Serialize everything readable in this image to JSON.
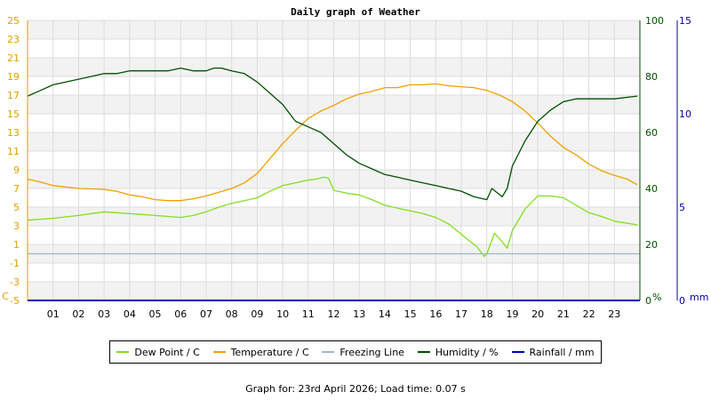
{
  "chart_data": {
    "type": "line",
    "title": "Daily graph of Weather",
    "x_ticks": [
      "01",
      "02",
      "03",
      "04",
      "05",
      "06",
      "07",
      "08",
      "09",
      "10",
      "11",
      "12",
      "13",
      "14",
      "15",
      "16",
      "17",
      "18",
      "19",
      "20",
      "21",
      "22",
      "23"
    ],
    "xlim": [
      0,
      24
    ],
    "y_left": {
      "unit_label": "C",
      "ticks": [
        -5,
        -3,
        -1,
        1,
        3,
        5,
        7,
        9,
        11,
        13,
        15,
        17,
        19,
        21,
        23,
        25
      ],
      "lim": [
        -5,
        25
      ],
      "color": "#e0a000"
    },
    "y_right_humidity": {
      "unit_label": "%",
      "ticks": [
        0,
        20,
        40,
        60,
        80,
        100
      ],
      "lim": [
        0,
        100
      ],
      "color": "#005000"
    },
    "y_right_rain": {
      "unit_label": "mm",
      "ticks": [
        0,
        5,
        10,
        15
      ],
      "lim": [
        0,
        15
      ],
      "color": "#0000a0"
    },
    "grid": true,
    "legend_position": "bottom",
    "series": [
      {
        "name": "Dew Point / C",
        "axis": "left",
        "color": "#80e020",
        "x": [
          0,
          1,
          2,
          2.5,
          3,
          3.5,
          4,
          5,
          6,
          6.5,
          7,
          7.5,
          8,
          8.5,
          9,
          9.5,
          10,
          10.5,
          11,
          11.3,
          11.6,
          11.8,
          12,
          12.5,
          13,
          13.5,
          14,
          14.5,
          15,
          15.5,
          16,
          16.5,
          17,
          17.3,
          17.6,
          17.9,
          18,
          18.3,
          18.6,
          18.8,
          19,
          19.5,
          20,
          20.5,
          21,
          21.5,
          22,
          22.5,
          23,
          23.9
        ],
        "y": [
          3.6,
          3.8,
          4.1,
          4.3,
          4.5,
          4.4,
          4.3,
          4.1,
          3.9,
          4.1,
          4.5,
          5.0,
          5.4,
          5.7,
          6.0,
          6.7,
          7.3,
          7.6,
          7.9,
          8.0,
          8.2,
          8.1,
          6.8,
          6.5,
          6.3,
          5.8,
          5.2,
          4.9,
          4.6,
          4.3,
          3.9,
          3.2,
          2.1,
          1.4,
          0.8,
          -0.3,
          0,
          2.2,
          1.3,
          0.6,
          2.5,
          4.8,
          6.2,
          6.2,
          6.0,
          5.2,
          4.4,
          4.0,
          3.5,
          3.1
        ]
      },
      {
        "name": "Temperature / C",
        "axis": "left",
        "color": "#f0a000",
        "x": [
          0,
          0.5,
          1,
          2,
          3,
          3.5,
          4,
          4.5,
          5,
          5.5,
          6,
          6.5,
          7,
          7.5,
          8,
          8.5,
          9,
          9.5,
          10,
          10.5,
          11,
          11.5,
          12,
          12.5,
          13,
          13.5,
          14,
          14.5,
          15,
          15.5,
          16,
          16.5,
          17,
          17.5,
          18,
          18.5,
          19,
          19.5,
          20,
          20.5,
          21,
          21.5,
          22,
          22.5,
          23,
          23.5,
          23.9
        ],
        "y": [
          8.0,
          7.7,
          7.3,
          7.0,
          6.9,
          6.7,
          6.3,
          6.1,
          5.8,
          5.7,
          5.7,
          5.9,
          6.2,
          6.6,
          7.0,
          7.6,
          8.6,
          10.2,
          11.8,
          13.2,
          14.5,
          15.3,
          15.9,
          16.6,
          17.1,
          17.4,
          17.8,
          17.8,
          18.1,
          18.1,
          18.2,
          18.0,
          17.9,
          17.8,
          17.5,
          17.0,
          16.3,
          15.3,
          14.0,
          12.6,
          11.4,
          10.6,
          9.6,
          8.9,
          8.4,
          8.0,
          7.4
        ]
      },
      {
        "name": "Freezing Line",
        "axis": "left",
        "color": "#a0b8c8",
        "x": [
          0,
          24
        ],
        "y": [
          0,
          0
        ]
      },
      {
        "name": "Humidity / %",
        "axis": "right_humidity",
        "color": "#005000",
        "x": [
          0,
          0.5,
          1,
          1.5,
          2,
          2.5,
          3,
          3.5,
          4,
          4.5,
          5,
          5.5,
          6,
          6.5,
          7,
          7.3,
          7.6,
          8,
          8.5,
          9,
          9.5,
          10,
          10.5,
          11,
          11.5,
          12,
          12.5,
          13,
          13.5,
          14,
          14.5,
          15,
          15.5,
          16,
          16.5,
          17,
          17.5,
          18,
          18.2,
          18.6,
          18.8,
          19,
          19.5,
          20,
          20.5,
          21,
          21.5,
          22,
          23,
          23.9
        ],
        "y": [
          73,
          75,
          77,
          78,
          79,
          80,
          81,
          81,
          82,
          82,
          82,
          82,
          83,
          82,
          82,
          83,
          83,
          82,
          81,
          78,
          74,
          70,
          64,
          62,
          60,
          56,
          52,
          49,
          47,
          45,
          44,
          43,
          42,
          41,
          40,
          39,
          37,
          36,
          40,
          37,
          40,
          48,
          57,
          64,
          68,
          71,
          72,
          72,
          72,
          73
        ]
      },
      {
        "name": "Rainfall / mm",
        "axis": "right_rain",
        "color": "#0000c0",
        "x": [
          0,
          24
        ],
        "y": [
          0,
          0
        ]
      }
    ]
  },
  "legend": [
    {
      "label": "Dew Point / C",
      "color": "#80e020"
    },
    {
      "label": "Temperature / C",
      "color": "#f0a000"
    },
    {
      "label": "Freezing Line",
      "color": "#a0b8c8"
    },
    {
      "label": "Humidity / %",
      "color": "#005000"
    },
    {
      "label": "Rainfall / mm",
      "color": "#0000c0"
    }
  ],
  "footer": "Graph for: 23rd April 2026; Load time: 0.07 s"
}
